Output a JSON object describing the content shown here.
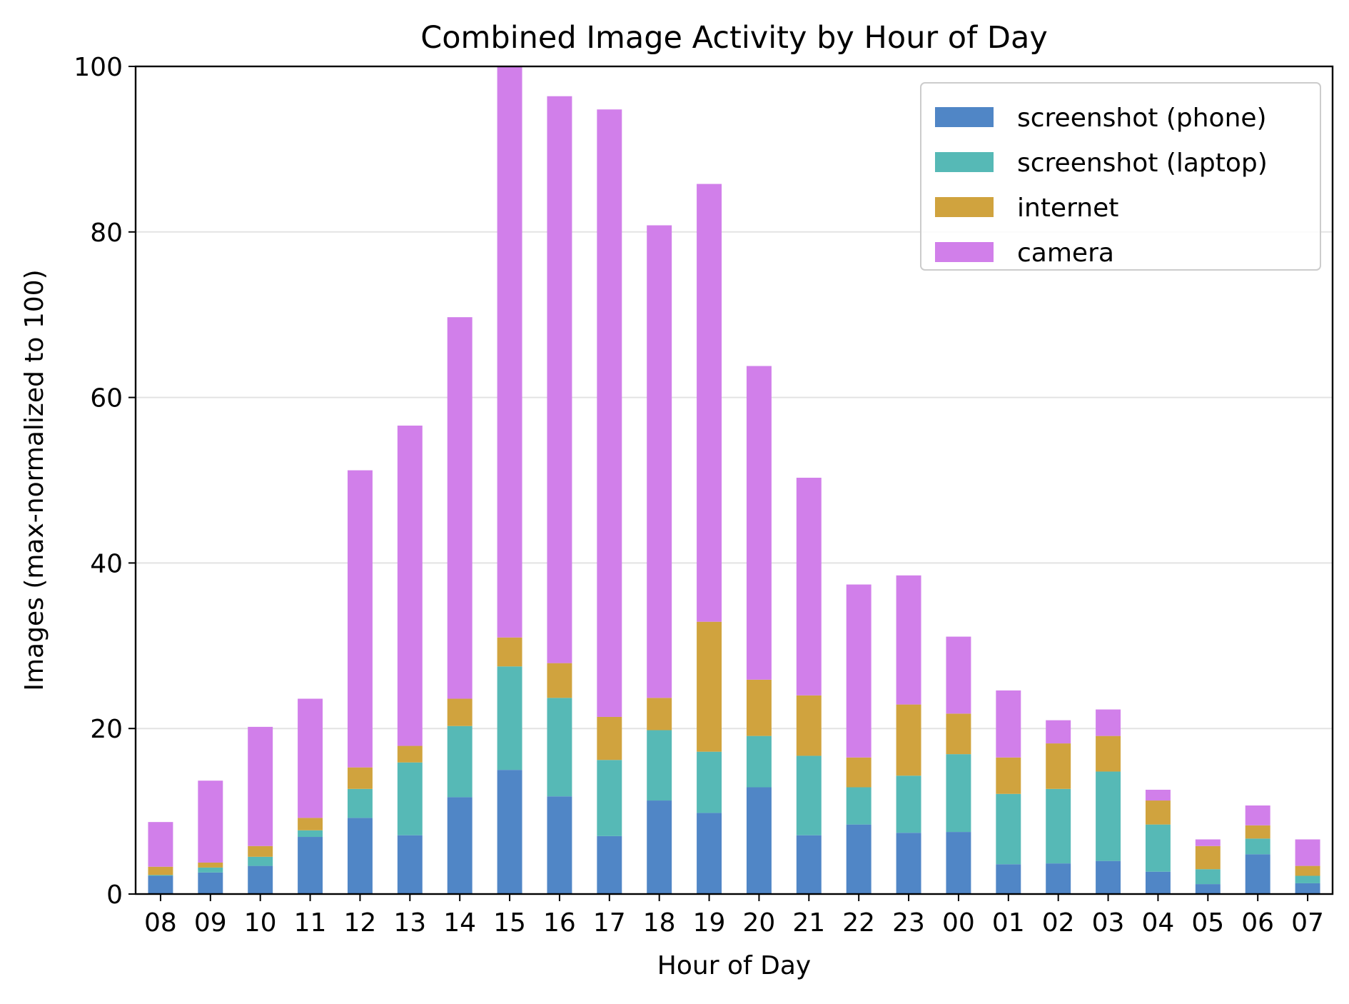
{
  "chart_data": {
    "type": "bar",
    "stacked": true,
    "title": "Combined Image Activity by Hour of Day",
    "xlabel": "Hour of Day",
    "ylabel": "Images (max-normalized to 100)",
    "ylim": [
      0,
      100
    ],
    "yticks": [
      0,
      20,
      40,
      60,
      80,
      100
    ],
    "grid": "horizontal",
    "legend_position": "top-right",
    "categories": [
      "08",
      "09",
      "10",
      "11",
      "12",
      "13",
      "14",
      "15",
      "16",
      "17",
      "18",
      "19",
      "20",
      "21",
      "22",
      "23",
      "00",
      "01",
      "02",
      "03",
      "04",
      "05",
      "06",
      "07"
    ],
    "series": [
      {
        "name": "screenshot (phone)",
        "color": "#5086c6",
        "values": [
          2.2,
          2.6,
          3.4,
          6.9,
          9.2,
          7.1,
          11.7,
          15.0,
          11.8,
          7.0,
          11.3,
          9.8,
          12.9,
          7.1,
          8.4,
          7.4,
          7.5,
          3.6,
          3.7,
          4.0,
          2.7,
          1.2,
          4.8,
          1.3
        ]
      },
      {
        "name": "screenshot (laptop)",
        "color": "#56b9b6",
        "values": [
          0.1,
          0.6,
          1.1,
          0.8,
          3.5,
          8.8,
          8.6,
          12.5,
          11.9,
          9.2,
          8.5,
          7.4,
          6.2,
          9.6,
          4.5,
          6.9,
          9.4,
          8.5,
          9.0,
          10.8,
          5.7,
          1.8,
          1.9,
          0.9
        ]
      },
      {
        "name": "internet",
        "color": "#d0a33e",
        "values": [
          1.0,
          0.6,
          1.3,
          1.5,
          2.6,
          2.0,
          3.3,
          3.5,
          4.2,
          5.2,
          3.9,
          15.7,
          6.8,
          7.3,
          3.6,
          8.6,
          4.9,
          4.4,
          5.5,
          4.3,
          2.9,
          2.8,
          1.6,
          1.2
        ]
      },
      {
        "name": "camera",
        "color": "#d17fea",
        "values": [
          5.4,
          9.9,
          14.4,
          14.4,
          35.9,
          38.7,
          46.1,
          69.0,
          68.5,
          73.4,
          57.1,
          52.9,
          37.9,
          26.3,
          20.9,
          15.6,
          9.3,
          8.1,
          2.8,
          3.2,
          1.3,
          0.8,
          2.4,
          3.2
        ]
      }
    ]
  }
}
